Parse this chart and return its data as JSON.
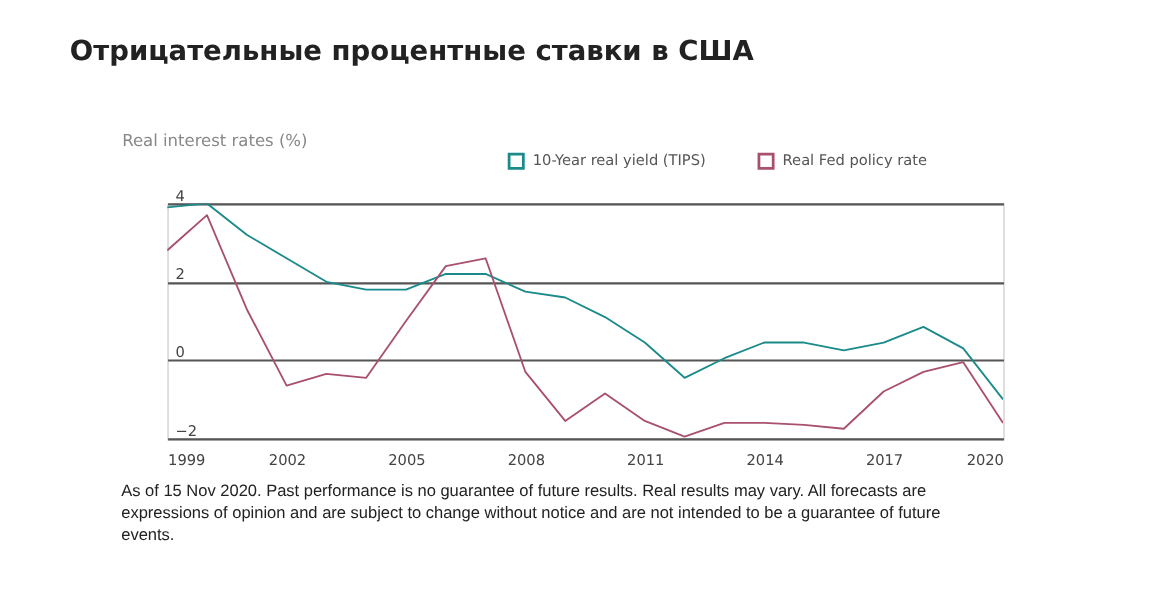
{
  "chart_data": {
    "type": "line",
    "title": "Отрицательные процентные ставки в США",
    "ylabel": "Real interest rates (%)",
    "x": [
      1999,
      2000,
      2001,
      2002,
      2003,
      2004,
      2005,
      2006,
      2007,
      2008,
      2009,
      2010,
      2011,
      2012,
      2013,
      2014,
      2015,
      2016,
      2017,
      2018,
      2019,
      2020
    ],
    "series": [
      {
        "name": "10-Year real yield (TIPS)",
        "color": "#1a8a8a",
        "values": [
          3.9,
          4.0,
          3.2,
          2.6,
          2.0,
          1.8,
          1.8,
          2.2,
          2.2,
          1.75,
          1.6,
          1.1,
          0.45,
          -0.45,
          0.05,
          0.45,
          0.45,
          0.25,
          0.45,
          0.85,
          0.3,
          -1.0
        ]
      },
      {
        "name": "Real Fed policy rate",
        "color": "#a8506e",
        "values": [
          2.8,
          3.7,
          1.3,
          -0.65,
          -0.35,
          -0.45,
          1.0,
          2.4,
          2.6,
          -0.3,
          -1.55,
          -0.85,
          -1.55,
          -1.95,
          -1.6,
          -1.6,
          -1.65,
          -1.75,
          -0.8,
          -0.3,
          -0.05,
          -1.6
        ]
      }
    ],
    "xlim": [
      1999,
      2020
    ],
    "xticks": [
      1999,
      2002,
      2005,
      2008,
      2011,
      2014,
      2017,
      2020
    ],
    "ylim": [
      -2,
      4
    ],
    "yticks": [
      -2,
      0,
      2,
      4
    ],
    "grid": "y",
    "legend": "top right",
    "marker": "none",
    "line_style": "solid",
    "annotations": [
      "As of 15 Nov 2020. Past performance is no guarantee of future results. Real results may vary. All forecasts are expressions of opinion and are subject to change without notice and are not intended to be a guarantee of future events."
    ]
  }
}
